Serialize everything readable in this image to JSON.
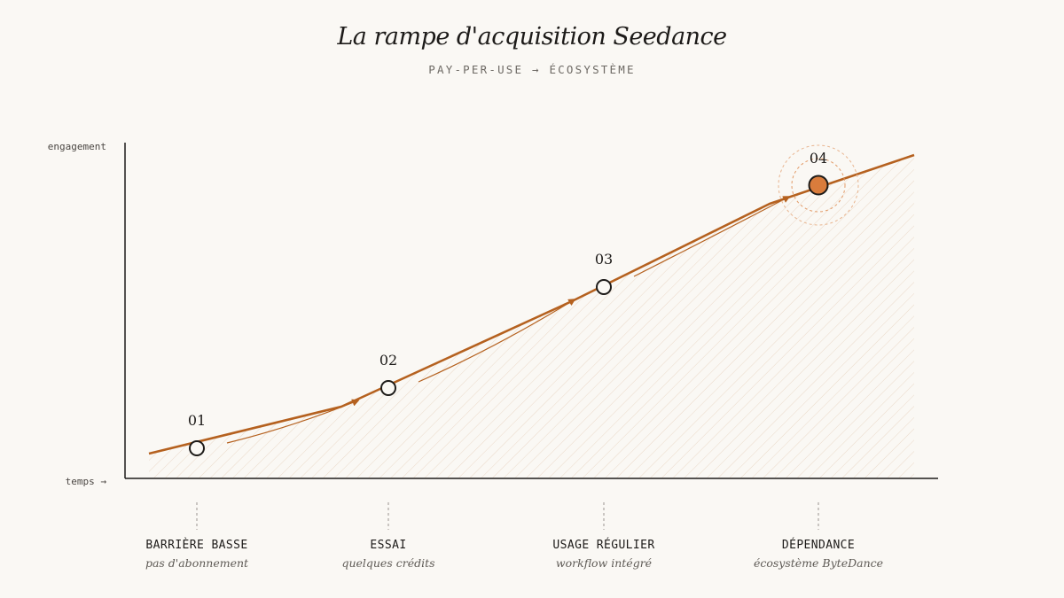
{
  "header": {
    "title": "La rampe d'acquisition Seedance",
    "subtitle": "PAY-PER-USE → ÉCOSYSTÈME"
  },
  "axes": {
    "y_label": "engagement",
    "x_label": "temps →"
  },
  "colors": {
    "background": "#faf8f4",
    "accent": "#b5611f",
    "final_point_fill": "#d97c3c",
    "axis": "#1d1b19"
  },
  "stages": [
    {
      "number": "01",
      "title": "BARRIÈRE BASSE",
      "subtitle": "pas d'abonnement",
      "highlighted": false
    },
    {
      "number": "02",
      "title": "ESSAI",
      "subtitle": "quelques crédits",
      "highlighted": false
    },
    {
      "number": "03",
      "title": "USAGE RÉGULIER",
      "subtitle": "workflow intégré",
      "highlighted": false
    },
    {
      "number": "04",
      "title": "DÉPENDANCE",
      "subtitle": "écosystème ByteDance",
      "highlighted": true
    }
  ]
}
